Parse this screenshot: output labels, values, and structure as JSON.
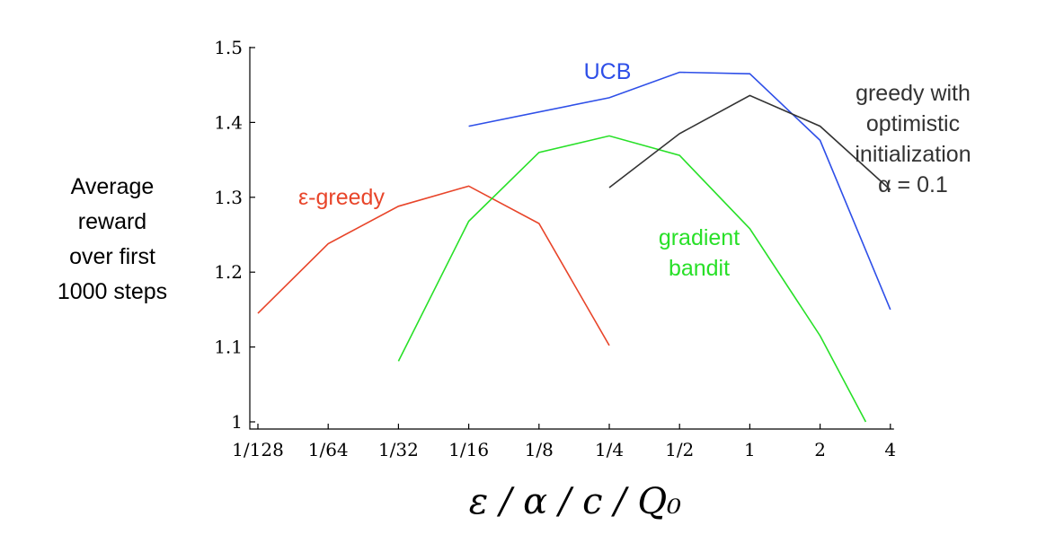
{
  "chart_data": {
    "type": "line",
    "title": "",
    "ylabel": [
      "Average",
      "reward",
      "over first",
      "1000 steps"
    ],
    "xlabel": "ε / α / c / Q₀",
    "x_ticks": [
      "1/128",
      "1/64",
      "1/32",
      "1/16",
      "1/8",
      "1/4",
      "1/2",
      "1",
      "2",
      "4"
    ],
    "y_ticks": [
      "1",
      "1.1",
      "1.2",
      "1.3",
      "1.4",
      "1.5"
    ],
    "ylim": [
      1.0,
      1.5
    ],
    "x_scale": "log2",
    "grid": false,
    "series": [
      {
        "label_lines": [
          "ε-greedy"
        ],
        "color": "#e8452a",
        "points": [
          [
            0,
            1.145
          ],
          [
            1,
            1.238
          ],
          [
            2,
            1.288
          ],
          [
            3,
            1.315
          ],
          [
            4,
            1.265
          ],
          [
            5,
            1.102
          ]
        ]
      },
      {
        "label_lines": [
          "gradient",
          "bandit"
        ],
        "color": "#28e028",
        "points": [
          [
            2,
            1.081
          ],
          [
            3,
            1.268
          ],
          [
            4,
            1.36
          ],
          [
            5,
            1.382
          ],
          [
            6,
            1.356
          ],
          [
            7,
            1.258
          ],
          [
            8,
            1.115
          ],
          [
            8.65,
            1.0
          ]
        ]
      },
      {
        "label_lines": [
          "UCB"
        ],
        "color": "#2e4fe8",
        "points": [
          [
            3,
            1.395
          ],
          [
            5,
            1.433
          ],
          [
            6,
            1.467
          ],
          [
            7,
            1.465
          ],
          [
            8,
            1.376
          ],
          [
            9,
            1.15
          ]
        ]
      },
      {
        "label_lines": [
          "greedy with",
          "optimistic",
          "initialization",
          "α = 0.1"
        ],
        "color": "#333333",
        "points": [
          [
            5,
            1.313
          ],
          [
            6,
            1.385
          ],
          [
            7,
            1.436
          ],
          [
            8,
            1.395
          ],
          [
            9,
            1.31
          ]
        ]
      }
    ]
  }
}
